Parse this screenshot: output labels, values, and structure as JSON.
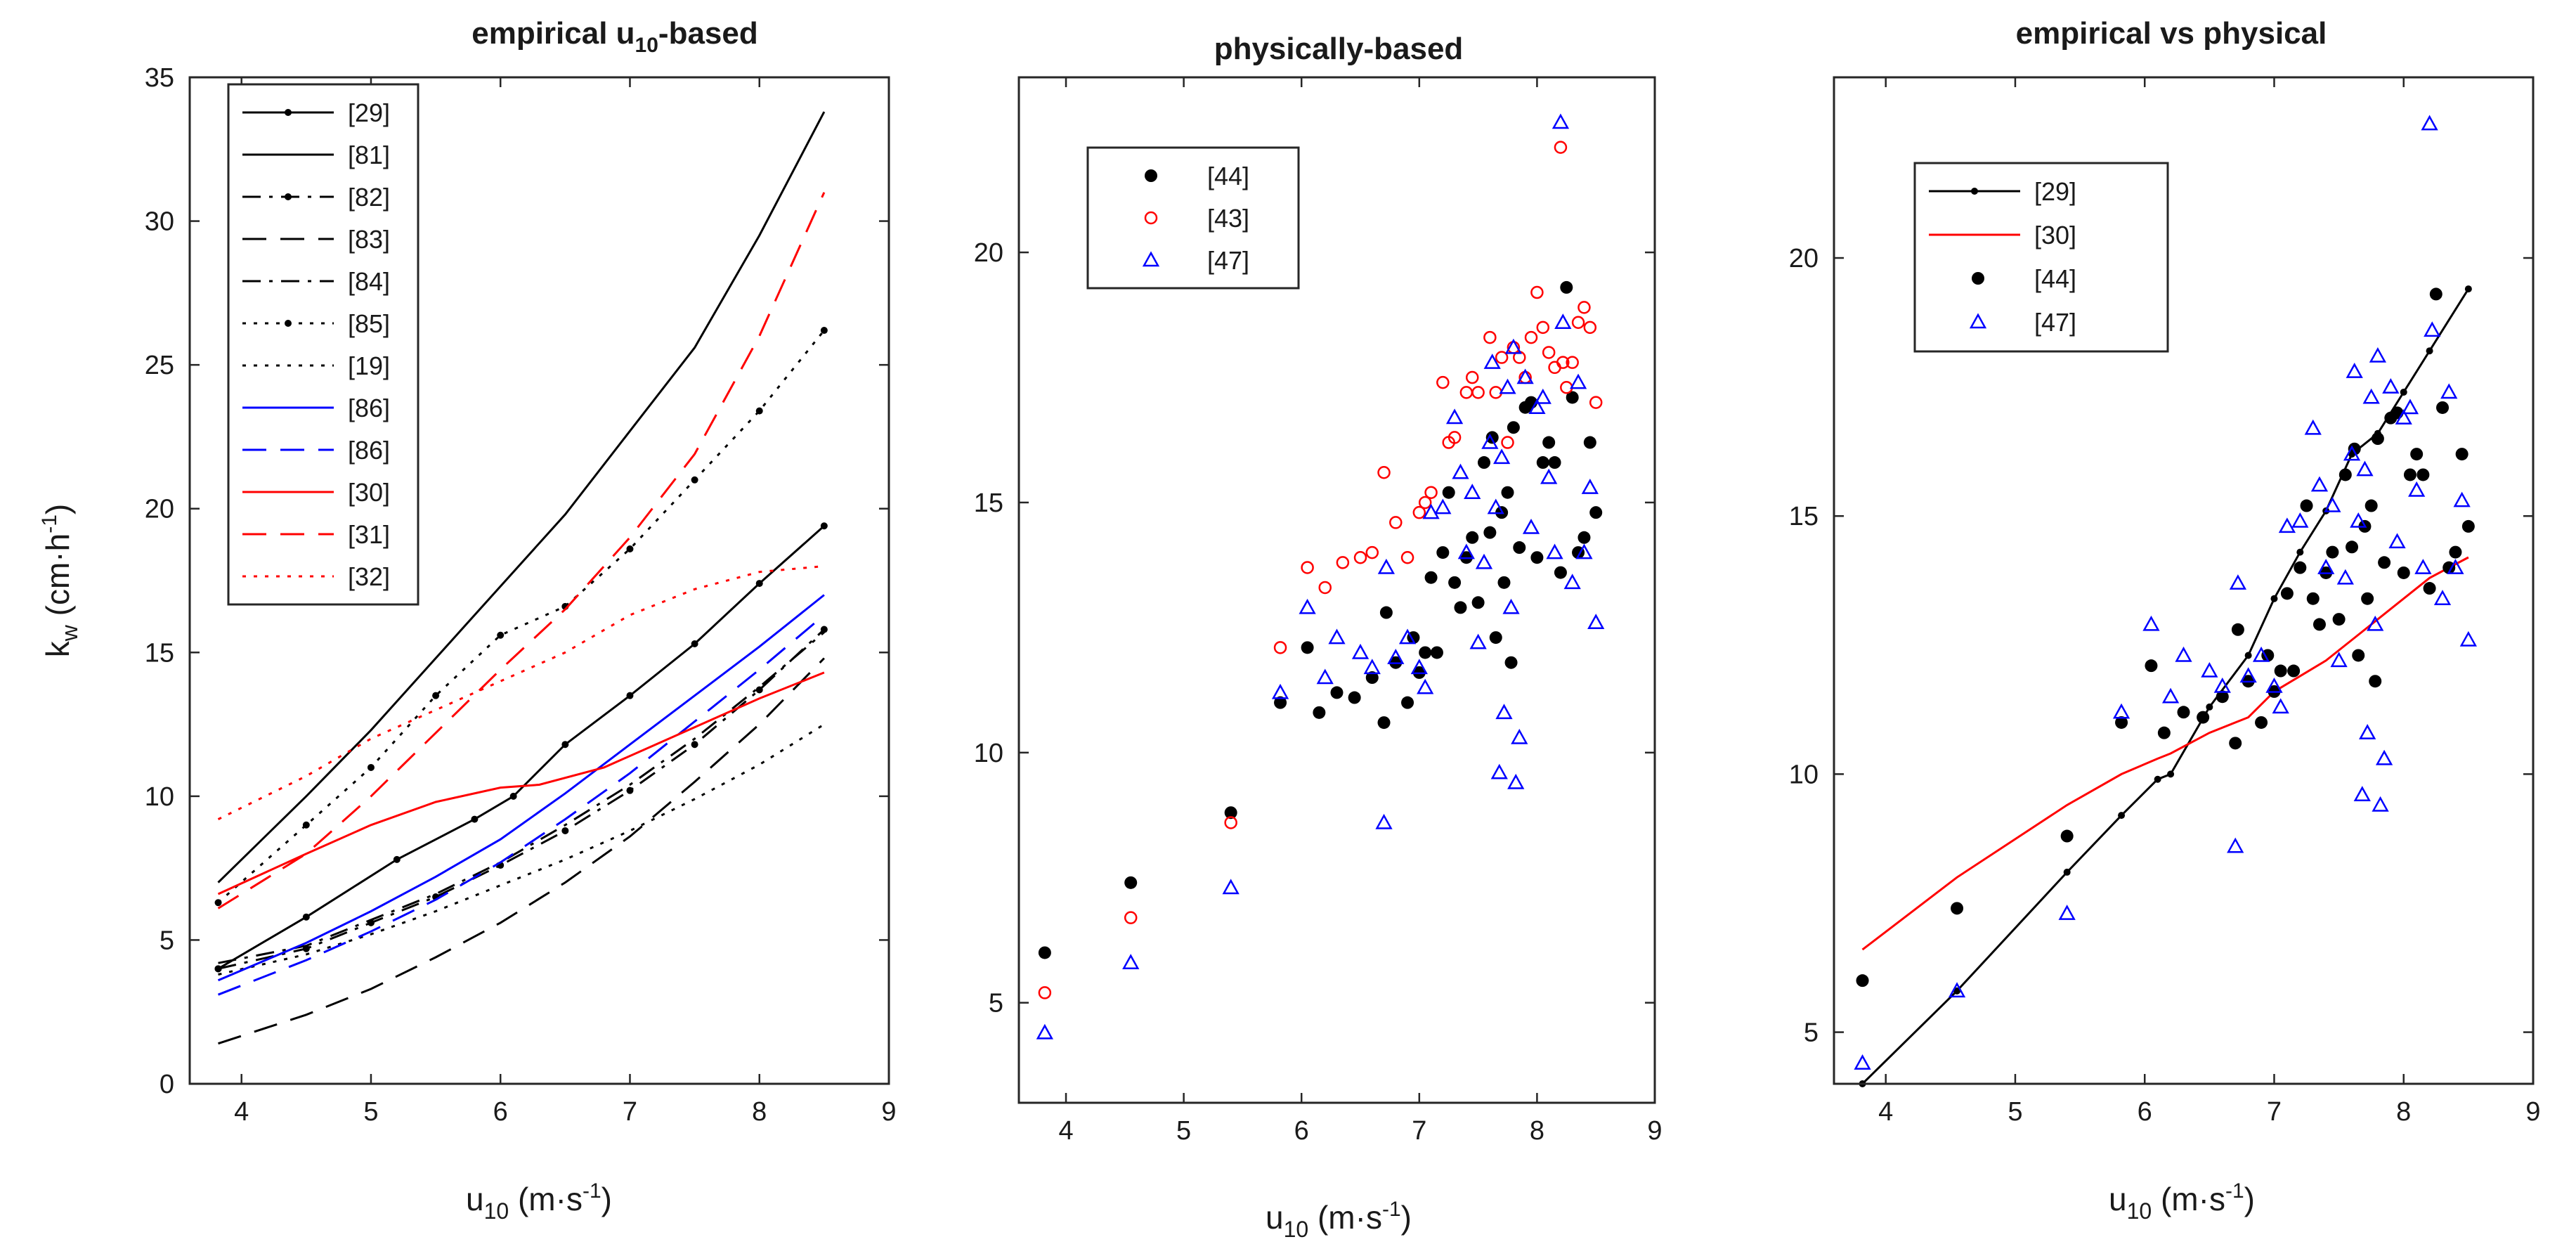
{
  "chart_data": [
    {
      "type": "line",
      "title": "empirical u₁₀-based",
      "title_main": "empirical u",
      "title_sub": "10",
      "title_suffix": "-based",
      "xlabel_main": "u",
      "xlabel_sub": "10",
      "xlabel_suffix": " (m·s",
      "xlabel_sup": "-1",
      "xlabel_end": ")",
      "ylabel_main": "k",
      "ylabel_sub": "w",
      "ylabel_suffix": " (cm·h",
      "ylabel_sup": "-1",
      "ylabel_end": ")",
      "xlim": [
        3.6,
        9
      ],
      "ylim": [
        0,
        35
      ],
      "xticks": [
        "4",
        "5",
        "6",
        "7",
        "8",
        "9"
      ],
      "yticks": [
        "0",
        "5",
        "10",
        "15",
        "20",
        "25",
        "30",
        "35"
      ],
      "grid": false,
      "legend_position": "top-left",
      "series": [
        {
          "name": "[29]",
          "color": "#000000",
          "dash": "solid",
          "marker": "dot",
          "x": [
            3.82,
            4.5,
            5.2,
            5.8,
            6.1,
            6.5,
            7.0,
            7.5,
            8.0,
            8.5
          ],
          "y": [
            4.0,
            5.8,
            7.8,
            9.2,
            10.0,
            11.8,
            13.5,
            15.3,
            17.4,
            19.4
          ]
        },
        {
          "name": "[81]",
          "color": "#000000",
          "dash": "solid",
          "marker": "none",
          "x": [
            3.82,
            4.5,
            5.0,
            5.5,
            6.0,
            6.5,
            7.0,
            7.5,
            8.0,
            8.5
          ],
          "y": [
            7.0,
            10.0,
            12.3,
            14.8,
            17.3,
            19.8,
            22.7,
            25.6,
            29.5,
            33.8
          ]
        },
        {
          "name": "[82]",
          "color": "#000000",
          "dash": "dashdot",
          "marker": "dot",
          "x": [
            3.82,
            4.5,
            5.0,
            5.5,
            6.0,
            6.5,
            7.0,
            7.5,
            8.0,
            8.5
          ],
          "y": [
            4.0,
            4.7,
            5.6,
            6.5,
            7.6,
            8.8,
            10.2,
            11.8,
            13.7,
            15.8
          ]
        },
        {
          "name": "[83]",
          "color": "#000000",
          "dash": "longdash",
          "marker": "none",
          "x": [
            3.82,
            4.5,
            5.0,
            5.5,
            6.0,
            6.5,
            7.0,
            7.5,
            8.0,
            8.5
          ],
          "y": [
            1.4,
            2.4,
            3.3,
            4.4,
            5.6,
            7.0,
            8.6,
            10.5,
            12.5,
            14.8
          ]
        },
        {
          "name": "[84]",
          "color": "#000000",
          "dash": "dashdot",
          "marker": "none",
          "x": [
            3.82,
            4.5,
            5.0,
            5.5,
            6.0,
            6.5,
            7.0,
            7.5,
            8.0,
            8.5
          ],
          "y": [
            4.2,
            4.8,
            5.7,
            6.6,
            7.7,
            9.0,
            10.4,
            12.0,
            13.8,
            15.7
          ]
        },
        {
          "name": "[85]",
          "color": "#000000",
          "dash": "dotted",
          "marker": "dot",
          "x": [
            3.82,
            4.5,
            5.0,
            5.5,
            6.0,
            6.5,
            7.0,
            7.5,
            8.0,
            8.5
          ],
          "y": [
            6.3,
            9.0,
            11.0,
            13.5,
            15.6,
            16.6,
            18.6,
            21.0,
            23.4,
            26.2
          ]
        },
        {
          "name": "[19]",
          "color": "#000000",
          "dash": "dotted",
          "marker": "none",
          "x": [
            3.82,
            4.5,
            5.0,
            5.5,
            6.0,
            6.5,
            7.0,
            7.5,
            8.0,
            8.5
          ],
          "y": [
            3.8,
            4.5,
            5.2,
            6.0,
            6.9,
            7.8,
            8.8,
            9.9,
            11.1,
            12.5
          ]
        },
        {
          "name": "[86]",
          "color": "#0000ff",
          "dash": "solid",
          "marker": "none",
          "x": [
            3.82,
            4.5,
            5.0,
            5.5,
            6.0,
            6.5,
            7.0,
            7.5,
            8.0,
            8.5
          ],
          "y": [
            3.6,
            4.9,
            6.0,
            7.2,
            8.5,
            10.1,
            11.8,
            13.5,
            15.2,
            17.0
          ]
        },
        {
          "name": "[86]",
          "color": "#0000ff",
          "dash": "longdash",
          "marker": "none",
          "x": [
            3.82,
            4.5,
            5.0,
            5.5,
            6.0,
            6.5,
            7.0,
            7.5,
            8.0,
            8.5
          ],
          "y": [
            3.1,
            4.3,
            5.3,
            6.4,
            7.7,
            9.2,
            10.8,
            12.6,
            14.4,
            16.3
          ]
        },
        {
          "name": "[30]",
          "color": "#ff0000",
          "dash": "solid",
          "marker": "none",
          "x": [
            3.82,
            4.5,
            5.0,
            5.5,
            6.0,
            6.3,
            6.8,
            7.2,
            7.6,
            8.0,
            8.5
          ],
          "y": [
            6.6,
            8.0,
            9.0,
            9.8,
            10.3,
            10.4,
            11.0,
            11.8,
            12.6,
            13.4,
            14.3
          ]
        },
        {
          "name": "[31]",
          "color": "#ff0000",
          "dash": "longdash",
          "marker": "none",
          "x": [
            3.82,
            4.5,
            5.0,
            5.5,
            6.0,
            6.5,
            7.0,
            7.5,
            8.0,
            8.5
          ],
          "y": [
            6.1,
            8.0,
            10.0,
            12.2,
            14.4,
            16.5,
            19.0,
            21.9,
            26.0,
            31.0
          ]
        },
        {
          "name": "[32]",
          "color": "#ff0000",
          "dash": "dotted",
          "marker": "none",
          "x": [
            3.82,
            4.5,
            5.0,
            5.5,
            6.0,
            6.5,
            7.0,
            7.5,
            8.0,
            8.5
          ],
          "y": [
            9.2,
            10.7,
            12.0,
            13.0,
            14.0,
            15.0,
            16.3,
            17.2,
            17.8,
            18.0
          ]
        }
      ]
    },
    {
      "type": "scatter",
      "title": "physically-based",
      "xlabel_main": "u",
      "xlabel_sub": "10",
      "xlabel_suffix": " (m·s",
      "xlabel_sup": "-1",
      "xlabel_end": ")",
      "xlim": [
        3.6,
        9
      ],
      "ylim": [
        3,
        23.5
      ],
      "xticks": [
        "4",
        "5",
        "6",
        "7",
        "8",
        "9"
      ],
      "yticks": [
        "5",
        "10",
        "15",
        "20"
      ],
      "grid": false,
      "legend_position": "top-left",
      "series": [
        {
          "name": "[44]",
          "color": "#000000",
          "marker": "filled-circle",
          "x": [
            3.82,
            4.55,
            5.4,
            5.82,
            6.05,
            6.15,
            6.3,
            6.45,
            6.6,
            6.7,
            6.72,
            6.8,
            6.9,
            6.95,
            7.0,
            7.05,
            7.1,
            7.15,
            7.2,
            7.25,
            7.3,
            7.35,
            7.4,
            7.45,
            7.5,
            7.55,
            7.6,
            7.62,
            7.65,
            7.7,
            7.72,
            7.75,
            7.78,
            7.8,
            7.85,
            7.9,
            7.95,
            8.0,
            8.05,
            8.1,
            8.15,
            8.2,
            8.25,
            8.3,
            8.35,
            8.4,
            8.45,
            8.5
          ],
          "y": [
            6.0,
            7.4,
            8.8,
            11.0,
            12.1,
            10.8,
            11.2,
            11.1,
            11.5,
            10.6,
            12.8,
            11.8,
            11.0,
            12.3,
            11.6,
            12.0,
            13.5,
            12.0,
            14.0,
            15.2,
            13.4,
            12.9,
            13.9,
            14.3,
            13.0,
            15.8,
            14.4,
            16.3,
            12.3,
            14.8,
            13.4,
            15.2,
            11.8,
            16.5,
            14.1,
            16.9,
            17.0,
            13.9,
            15.8,
            16.2,
            15.8,
            13.6,
            19.3,
            17.1,
            14.0,
            14.3,
            16.2,
            14.8
          ]
        },
        {
          "name": "[43]",
          "color": "#ff0000",
          "marker": "open-circle",
          "x": [
            3.82,
            4.55,
            5.4,
            5.82,
            6.05,
            6.2,
            6.35,
            6.5,
            6.6,
            6.7,
            6.8,
            6.9,
            7.0,
            7.05,
            7.1,
            7.2,
            7.25,
            7.3,
            7.4,
            7.45,
            7.5,
            7.6,
            7.65,
            7.7,
            7.75,
            7.8,
            7.85,
            7.9,
            7.95,
            8.0,
            8.05,
            8.1,
            8.15,
            8.2,
            8.22,
            8.25,
            8.3,
            8.35,
            8.4,
            8.45,
            8.5
          ],
          "y": [
            5.2,
            6.7,
            8.6,
            12.1,
            13.7,
            13.3,
            13.8,
            13.9,
            14.0,
            15.6,
            14.6,
            13.9,
            14.8,
            15.0,
            15.2,
            17.4,
            16.2,
            16.3,
            17.2,
            17.5,
            17.2,
            18.3,
            17.2,
            17.9,
            16.2,
            18.1,
            17.9,
            17.5,
            18.3,
            19.2,
            18.5,
            18.0,
            17.7,
            22.1,
            17.8,
            17.3,
            17.8,
            18.6,
            18.9,
            18.5,
            17.0
          ]
        },
        {
          "name": "[47]",
          "color": "#0000ff",
          "marker": "open-triangle",
          "x": [
            3.82,
            4.55,
            5.4,
            5.82,
            6.05,
            6.2,
            6.3,
            6.5,
            6.6,
            6.7,
            6.72,
            6.8,
            6.9,
            7.0,
            7.05,
            7.1,
            7.2,
            7.3,
            7.35,
            7.4,
            7.45,
            7.5,
            7.55,
            7.6,
            7.62,
            7.65,
            7.68,
            7.7,
            7.72,
            7.75,
            7.78,
            7.8,
            7.82,
            7.85,
            7.9,
            7.95,
            8.0,
            8.05,
            8.1,
            8.15,
            8.2,
            8.22,
            8.3,
            8.35,
            8.4,
            8.45,
            8.5
          ],
          "y": [
            4.4,
            5.8,
            7.3,
            11.2,
            12.9,
            11.5,
            12.3,
            12.0,
            11.7,
            8.6,
            13.7,
            11.9,
            12.3,
            11.7,
            11.3,
            14.8,
            14.9,
            16.7,
            15.6,
            14.0,
            15.2,
            12.2,
            13.8,
            16.2,
            17.8,
            14.9,
            9.6,
            15.9,
            10.8,
            17.3,
            12.9,
            18.1,
            9.4,
            10.3,
            17.5,
            14.5,
            16.9,
            17.1,
            15.5,
            14.0,
            22.6,
            18.6,
            13.4,
            17.4,
            14.0,
            15.3,
            12.6
          ]
        }
      ]
    },
    {
      "type": "line",
      "title": "empirical vs physical",
      "xlabel_main": "u",
      "xlabel_sub": "10",
      "xlabel_suffix": " (m·s",
      "xlabel_sup": "-1",
      "xlabel_end": ")",
      "xlim": [
        3.6,
        9
      ],
      "ylim": [
        4,
        23.5
      ],
      "xticks": [
        "4",
        "5",
        "6",
        "7",
        "8",
        "9"
      ],
      "yticks": [
        "5",
        "10",
        "15",
        "20"
      ],
      "grid": false,
      "legend_position": "top-left",
      "series": [
        {
          "name": "[29]",
          "color": "#000000",
          "kind": "line",
          "dash": "solid",
          "marker": "dot",
          "x": [
            3.82,
            4.55,
            5.4,
            5.82,
            6.1,
            6.2,
            6.5,
            6.8,
            7.0,
            7.2,
            7.4,
            7.6,
            7.8,
            8.0,
            8.2,
            8.5
          ],
          "y": [
            4.0,
            5.8,
            8.1,
            9.2,
            9.9,
            10.0,
            11.3,
            12.3,
            13.4,
            14.3,
            15.1,
            16.2,
            16.6,
            17.4,
            18.2,
            19.4
          ]
        },
        {
          "name": "[30]",
          "color": "#ff0000",
          "kind": "line",
          "dash": "solid",
          "marker": "none",
          "x": [
            3.82,
            4.55,
            5.4,
            5.82,
            6.1,
            6.2,
            6.5,
            6.8,
            7.0,
            7.2,
            7.4,
            7.6,
            7.8,
            8.0,
            8.2,
            8.5
          ],
          "y": [
            6.6,
            8.0,
            9.4,
            10.0,
            10.3,
            10.4,
            10.8,
            11.1,
            11.6,
            11.9,
            12.2,
            12.6,
            13.0,
            13.4,
            13.8,
            14.2
          ]
        },
        {
          "name": "[44]",
          "color": "#000000",
          "kind": "scatter",
          "marker": "filled-circle",
          "x": [
            3.82,
            4.55,
            5.4,
            5.82,
            6.05,
            6.15,
            6.3,
            6.45,
            6.6,
            6.7,
            6.72,
            6.8,
            6.9,
            6.95,
            7.0,
            7.05,
            7.1,
            7.15,
            7.2,
            7.25,
            7.3,
            7.35,
            7.4,
            7.45,
            7.5,
            7.55,
            7.6,
            7.62,
            7.65,
            7.7,
            7.72,
            7.75,
            7.78,
            7.8,
            7.85,
            7.9,
            7.95,
            8.0,
            8.05,
            8.1,
            8.15,
            8.2,
            8.25,
            8.3,
            8.35,
            8.4,
            8.45,
            8.5
          ],
          "y": [
            6.0,
            7.4,
            8.8,
            11.0,
            12.1,
            10.8,
            11.2,
            11.1,
            11.5,
            10.6,
            12.8,
            11.8,
            11.0,
            12.3,
            11.6,
            12.0,
            13.5,
            12.0,
            14.0,
            15.2,
            13.4,
            12.9,
            13.9,
            14.3,
            13.0,
            15.8,
            14.4,
            16.3,
            12.3,
            14.8,
            13.4,
            15.2,
            11.8,
            16.5,
            14.1,
            16.9,
            17.0,
            13.9,
            15.8,
            16.2,
            15.8,
            13.6,
            19.3,
            17.1,
            14.0,
            14.3,
            16.2,
            14.8
          ]
        },
        {
          "name": "[47]",
          "color": "#0000ff",
          "kind": "scatter",
          "marker": "open-triangle",
          "x": [
            3.82,
            4.55,
            5.4,
            5.82,
            6.05,
            6.2,
            6.3,
            6.5,
            6.6,
            6.7,
            6.72,
            6.8,
            6.9,
            7.0,
            7.05,
            7.1,
            7.2,
            7.3,
            7.35,
            7.4,
            7.45,
            7.5,
            7.55,
            7.6,
            7.62,
            7.65,
            7.68,
            7.7,
            7.72,
            7.75,
            7.78,
            7.8,
            7.82,
            7.85,
            7.9,
            7.95,
            8.0,
            8.05,
            8.1,
            8.15,
            8.2,
            8.22,
            8.3,
            8.35,
            8.4,
            8.45,
            8.5
          ],
          "y": [
            4.4,
            5.8,
            7.3,
            11.2,
            12.9,
            11.5,
            12.3,
            12.0,
            11.7,
            8.6,
            13.7,
            11.9,
            12.3,
            11.7,
            11.3,
            14.8,
            14.9,
            16.7,
            15.6,
            14.0,
            15.2,
            12.2,
            13.8,
            16.2,
            17.8,
            14.9,
            9.6,
            15.9,
            10.8,
            17.3,
            12.9,
            18.1,
            9.4,
            10.3,
            17.5,
            14.5,
            16.9,
            17.1,
            15.5,
            14.0,
            22.6,
            18.6,
            13.4,
            17.4,
            14.0,
            15.3,
            12.6
          ]
        }
      ]
    }
  ]
}
